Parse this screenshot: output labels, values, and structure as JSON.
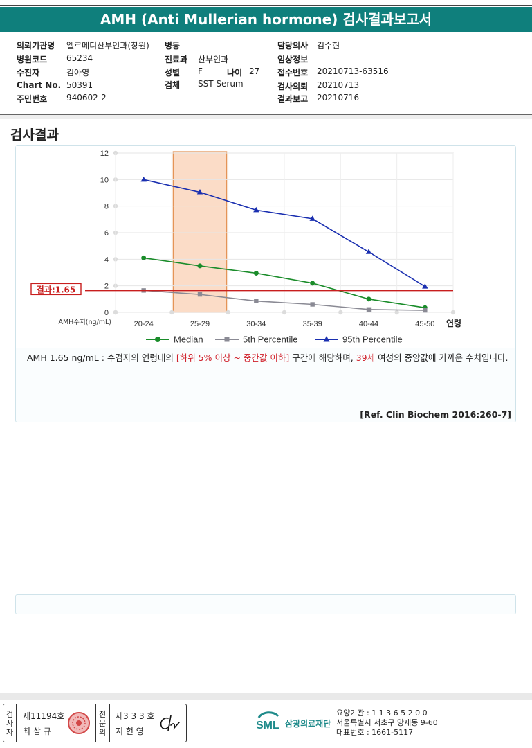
{
  "report": {
    "title": "AMH (Anti Mullerian hormone) 검사결과보고서",
    "info": {
      "hospital_label": "의뢰기관명",
      "hospital": "엘르메디산부인과(창원)",
      "code_label": "병원코드",
      "code": "65234",
      "patient_label": "수진자",
      "patient": "김아영",
      "chart_label": "Chart No.",
      "chart": "50391",
      "id_label": "주민번호",
      "id": "940602-2",
      "ward_label": "병동",
      "ward": "",
      "dept_label": "진료과",
      "dept": "산부인과",
      "sex_label": "성별",
      "sex": "F",
      "age_label": "나이",
      "age": "27",
      "specimen_label": "검체",
      "specimen": "SST Serum",
      "doctor_label": "담당의사",
      "doctor": "김수현",
      "clinical_label": "임상정보",
      "clinical": "",
      "receipt_label": "접수번호",
      "receipt": "20210713-63516",
      "request_label": "검사의뢰",
      "request": "20210713",
      "result_label": "결과보고",
      "result_date": "20210716"
    }
  },
  "section_title": "검사결과",
  "colors": {
    "title_bar": "#0f7f7c",
    "median": "#1a8c2a",
    "p5": "#8a8a94",
    "p95": "#1a2fb0",
    "result_line": "#c81e1e",
    "highlight": "#fbd9c2"
  },
  "chart_data": {
    "type": "line",
    "categories": [
      "20-24",
      "25-29",
      "30-34",
      "35-39",
      "40-44",
      "45-50"
    ],
    "x_title": "연령",
    "y_title": "AMH수치(ng/mL)",
    "ylim": [
      0,
      12
    ],
    "yticks": [
      0,
      2,
      4,
      6,
      8,
      10,
      12
    ],
    "grid": true,
    "highlight_category": "25-29",
    "result_value": 1.65,
    "result_label": "결과:1.65",
    "legend_position": "bottom",
    "series": [
      {
        "name": "Median",
        "marker": "circle",
        "color": "#1a8c2a",
        "values": [
          4.1,
          3.5,
          2.95,
          2.2,
          1.0,
          0.35
        ]
      },
      {
        "name": "5th Percentile",
        "marker": "square",
        "color": "#8a8a94",
        "values": [
          1.65,
          1.35,
          0.85,
          0.6,
          0.22,
          0.15
        ]
      },
      {
        "name": "95th Percentile",
        "marker": "triangle",
        "color": "#1a2fb0",
        "values": [
          10.0,
          9.05,
          7.7,
          7.05,
          4.55,
          1.95
        ]
      }
    ]
  },
  "description": {
    "part1": "AMH  1.65 ng/mL : 수검자의 연령대의 ",
    "red1": "[하위 5% 이상 ~ 중간값 이하]",
    "part2": " 구간에 해당하며, ",
    "red2": "39세",
    "part3": " 여성의 중앙값에 가까운 수치입니다."
  },
  "reference": "[Ref. Clin Biochem 2016:260-7]",
  "footer": {
    "inspector_label": "검사자",
    "inspector_no": "제11194호",
    "inspector_name": "최 삼 규",
    "specialist_label": "전문의",
    "specialist_no": "제3 3 3 호",
    "specialist_name": "지 현 영",
    "company_logo": "SML",
    "company_name": "삼광의료재단",
    "institution_no": "요양기관 : 1 1 3 6 5 2 0 0",
    "address": "서울특별시 서초구 양재동 9-60",
    "phone": "대표번호 : 1661-5117"
  }
}
